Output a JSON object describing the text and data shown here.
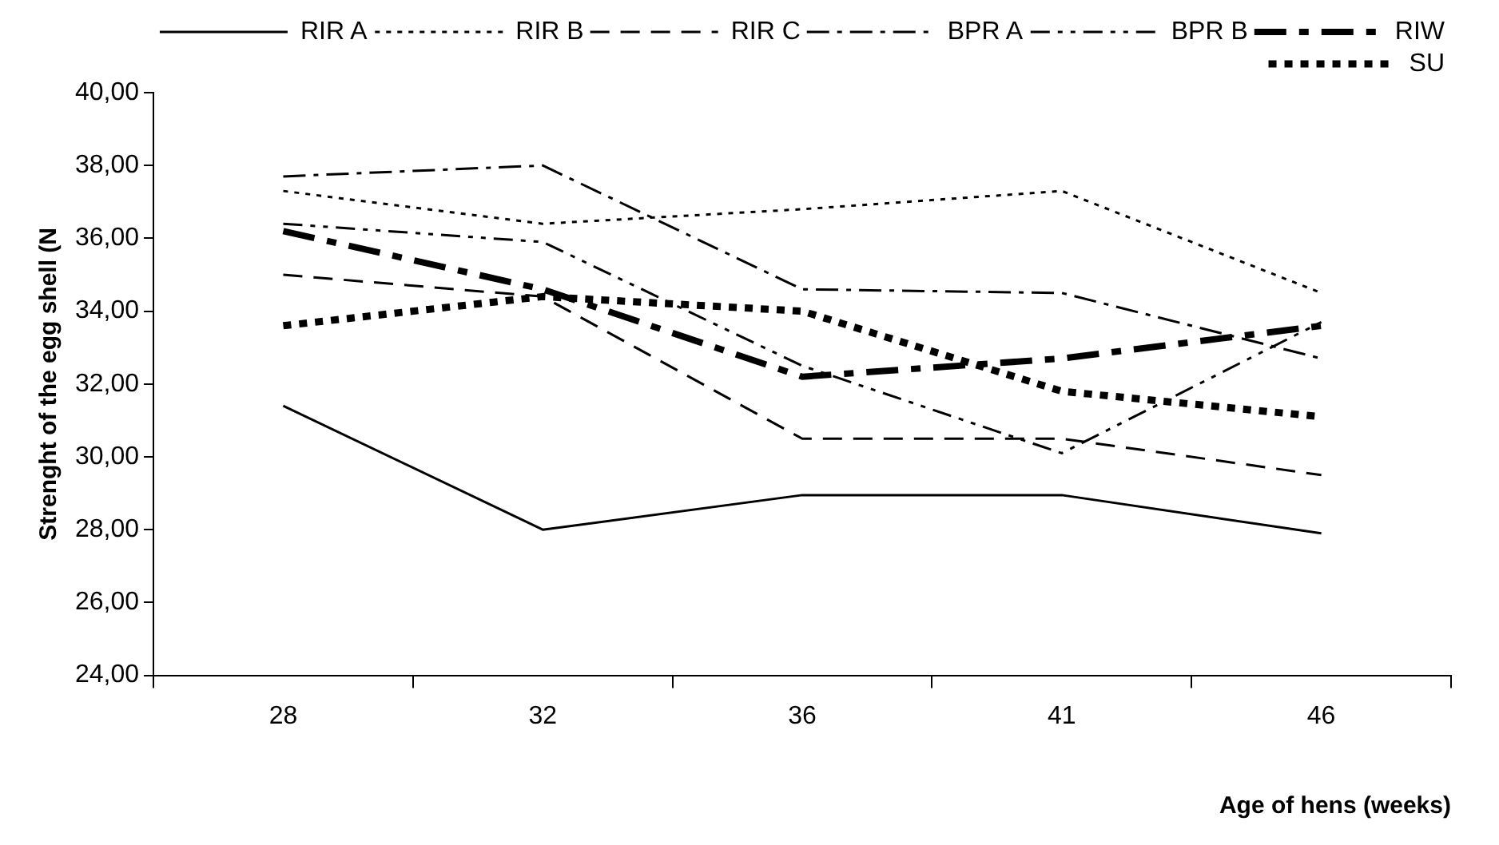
{
  "chart_data": {
    "type": "line",
    "xlabel": "Age of hens (weeks)",
    "ylabel": "Strenght of the egg shell (N",
    "categories": [
      "28",
      "32",
      "36",
      "41",
      "46"
    ],
    "series": [
      {
        "name": "RIR A",
        "color": "#000000",
        "line_style": "solid",
        "values": [
          31.4,
          28.0,
          28.95,
          28.95,
          27.9
        ]
      },
      {
        "name": "RIR B",
        "color": "#000000",
        "line_style": "dotted",
        "values": [
          37.3,
          36.4,
          36.8,
          37.3,
          34.5
        ]
      },
      {
        "name": "RIR C",
        "color": "#000000",
        "line_style": "dashed",
        "values": [
          35.0,
          34.4,
          30.5,
          30.5,
          29.5
        ]
      },
      {
        "name": "BPR A",
        "color": "#000000",
        "line_style": "dashdot",
        "values": [
          37.7,
          38.0,
          34.6,
          34.5,
          32.7
        ]
      },
      {
        "name": "BPR B",
        "color": "#000000",
        "line_style": "dashdotdot",
        "values": [
          36.4,
          35.9,
          32.5,
          30.1,
          33.7
        ]
      },
      {
        "name": "RIW",
        "color": "#000000",
        "line_style": "longdash",
        "values": [
          36.2,
          34.6,
          32.2,
          32.7,
          33.6
        ]
      },
      {
        "name": "SU",
        "color": "#000000",
        "line_style": "squaredot",
        "values": [
          33.6,
          34.4,
          34.0,
          31.8,
          31.1
        ]
      }
    ],
    "ylim": [
      24,
      40
    ],
    "yticks": [
      {
        "value": 24,
        "label": "24,00"
      },
      {
        "value": 26,
        "label": "26,00"
      },
      {
        "value": 28,
        "label": "28,00"
      },
      {
        "value": 30,
        "label": "30,00"
      },
      {
        "value": 32,
        "label": "32,00"
      },
      {
        "value": 34,
        "label": "34,00"
      },
      {
        "value": 36,
        "label": "36,00"
      },
      {
        "value": 38,
        "label": "38,00"
      },
      {
        "value": 40,
        "label": "40,00"
      }
    ],
    "grid": false,
    "legend": "top right",
    "marker": "none"
  }
}
